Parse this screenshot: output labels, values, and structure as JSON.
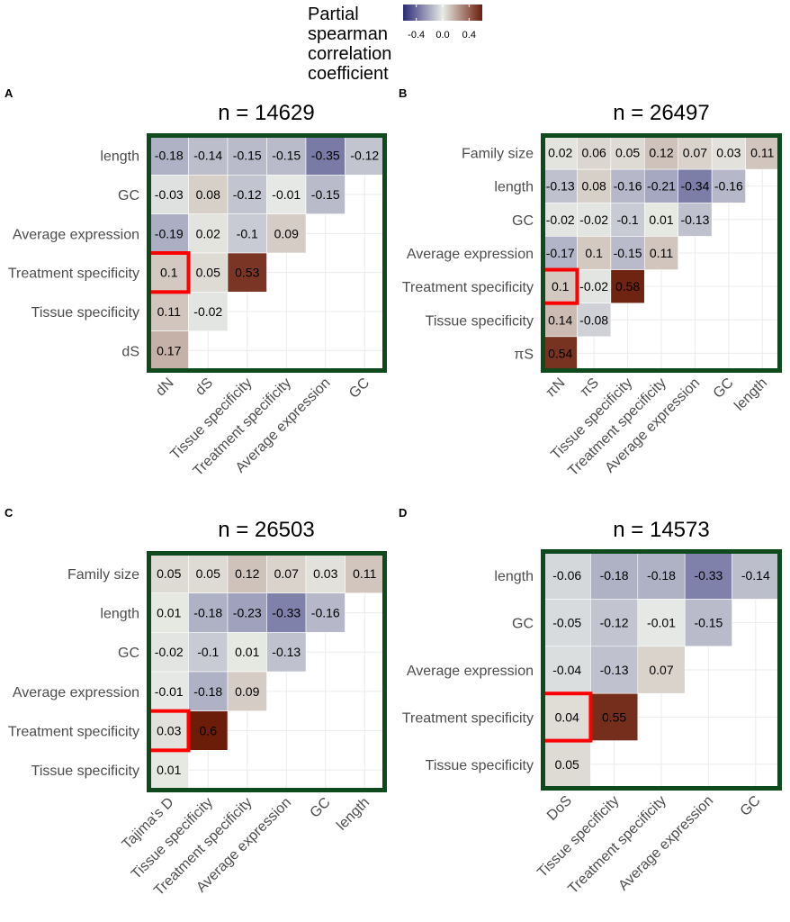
{
  "legend": {
    "title_lines": [
      "Partial",
      "spearman",
      "correlation",
      "coefficient"
    ],
    "ticks": [
      -0.4,
      0.0,
      0.4
    ],
    "tick_labels": [
      "-0.4",
      "0.0",
      "0.4"
    ],
    "range": [
      -0.6,
      0.6
    ],
    "colors": {
      "low": "#2b2a78",
      "mid": "#e8ebe6",
      "high": "#6b1d0a"
    }
  },
  "colors": {
    "frame": "#0f4a1e",
    "highlight": "#ff0000"
  },
  "chart_data": [
    {
      "type": "heatmap",
      "panel": "A",
      "title": "n = 14629",
      "rows": [
        "length",
        "GC",
        "Average expression",
        "Treatment specificity",
        "Tissue specificity",
        "dS"
      ],
      "cols": [
        "dN",
        "dS",
        "Tissue specificity",
        "Treatment specificity",
        "Average expression",
        "GC"
      ],
      "values": [
        [
          -0.18,
          -0.14,
          -0.15,
          -0.15,
          -0.35,
          -0.12
        ],
        [
          -0.03,
          0.08,
          -0.12,
          -0.01,
          -0.15
        ],
        [
          -0.19,
          0.02,
          -0.1,
          0.09
        ],
        [
          0.1,
          0.05,
          0.53
        ],
        [
          0.11,
          -0.02
        ],
        [
          0.17
        ]
      ],
      "value_labels": [
        [
          "-0.18",
          "-0.14",
          "-0.15",
          "-0.15",
          "-0.35",
          "-0.12"
        ],
        [
          "-0.03",
          "0.08",
          "-0.12",
          "-0.01",
          "-0.15"
        ],
        [
          "-0.19",
          "0.02",
          "-0.1",
          "0.09"
        ],
        [
          "0.1",
          "0.05",
          "0.53"
        ],
        [
          "0.11",
          "-0.02"
        ],
        [
          "0.17"
        ]
      ],
      "highlight": [
        3,
        0
      ]
    },
    {
      "type": "heatmap",
      "panel": "B",
      "title": "n = 26497",
      "rows": [
        "Family size",
        "length",
        "GC",
        "Average expression",
        "Treatment specificity",
        "Tissue specificity",
        "πS"
      ],
      "cols": [
        "πN",
        "πS",
        "Tissue specificity",
        "Treatment specificity",
        "Average expression",
        "GC",
        "length"
      ],
      "values": [
        [
          0.02,
          0.06,
          0.05,
          0.12,
          0.07,
          0.03,
          0.11
        ],
        [
          -0.13,
          0.08,
          -0.16,
          -0.21,
          -0.34,
          -0.16
        ],
        [
          -0.02,
          -0.02,
          -0.1,
          0.01,
          -0.13
        ],
        [
          -0.17,
          0.1,
          -0.15,
          0.11
        ],
        [
          0.1,
          -0.02,
          0.58
        ],
        [
          0.14,
          -0.08
        ],
        [
          0.54
        ]
      ],
      "value_labels": [
        [
          "0.02",
          "0.06",
          "0.05",
          "0.12",
          "0.07",
          "0.03",
          "0.11"
        ],
        [
          "-0.13",
          "0.08",
          "-0.16",
          "-0.21",
          "-0.34",
          "-0.16"
        ],
        [
          "-0.02",
          "-0.02",
          "-0.1",
          "0.01",
          "-0.13"
        ],
        [
          "-0.17",
          "0.1",
          "-0.15",
          "0.11"
        ],
        [
          "0.1",
          "-0.02",
          "0.58"
        ],
        [
          "0.14",
          "-0.08"
        ],
        [
          "0.54"
        ]
      ],
      "highlight": [
        4,
        0
      ]
    },
    {
      "type": "heatmap",
      "panel": "C",
      "title": "n = 26503",
      "rows": [
        "Family size",
        "length",
        "GC",
        "Average expression",
        "Treatment specificity",
        "Tissue specificity"
      ],
      "cols": [
        "Tajima's D",
        "Tissue specificity",
        "Treatment specificity",
        "Average expression",
        "GC",
        "length"
      ],
      "values": [
        [
          0.05,
          0.05,
          0.12,
          0.07,
          0.03,
          0.11
        ],
        [
          0.01,
          -0.18,
          -0.23,
          -0.33,
          -0.16
        ],
        [
          -0.02,
          -0.1,
          0.01,
          -0.13
        ],
        [
          -0.01,
          -0.18,
          0.09
        ],
        [
          0.03,
          0.6
        ],
        [
          0.01
        ]
      ],
      "value_labels": [
        [
          "0.05",
          "0.05",
          "0.12",
          "0.07",
          "0.03",
          "0.11"
        ],
        [
          "0.01",
          "-0.18",
          "-0.23",
          "-0.33",
          "-0.16"
        ],
        [
          "-0.02",
          "-0.1",
          "0.01",
          "-0.13"
        ],
        [
          "-0.01",
          "-0.18",
          "0.09"
        ],
        [
          "0.03",
          "0.6"
        ],
        [
          "0.01"
        ]
      ],
      "highlight": [
        4,
        0
      ]
    },
    {
      "type": "heatmap",
      "panel": "D",
      "title": "n = 14573",
      "rows": [
        "length",
        "GC",
        "Average expression",
        "Treatment specificity",
        "Tissue specificity"
      ],
      "cols": [
        "DoS",
        "Tissue specificity",
        "Treatment specificity",
        "Average expression",
        "GC"
      ],
      "values": [
        [
          -0.06,
          -0.18,
          -0.18,
          -0.33,
          -0.14
        ],
        [
          -0.05,
          -0.12,
          -0.01,
          -0.15
        ],
        [
          -0.04,
          -0.13,
          0.07
        ],
        [
          0.04,
          0.55
        ],
        [
          0.05
        ]
      ],
      "value_labels": [
        [
          "-0.06",
          "-0.18",
          "-0.18",
          "-0.33",
          "-0.14"
        ],
        [
          "-0.05",
          "-0.12",
          "-0.01",
          "-0.15"
        ],
        [
          "-0.04",
          "-0.13",
          "0.07"
        ],
        [
          "0.04",
          "0.55"
        ],
        [
          "0.05"
        ]
      ],
      "highlight": [
        3,
        0
      ]
    }
  ]
}
